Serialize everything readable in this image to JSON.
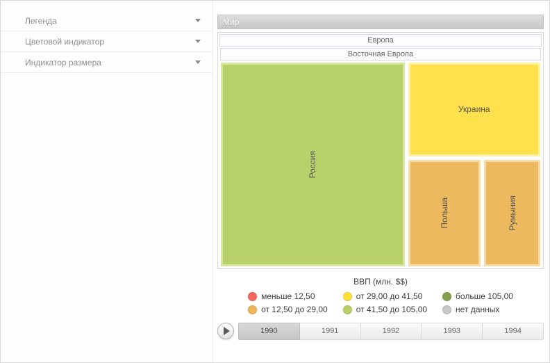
{
  "sidebar": {
    "items": [
      {
        "label": "Легенда",
        "icon": "chevron-down-icon"
      },
      {
        "label": "Цветовой индикатор",
        "icon": "chevron-down-icon"
      },
      {
        "label": "Индикатор размера",
        "icon": "chevron-down-icon"
      }
    ]
  },
  "breadcrumb": {
    "title": "Мир"
  },
  "treemap": {
    "group_label": "Европа",
    "subgroup_label": "Восточная Европа",
    "tiles": {
      "russia": {
        "label": "Россия",
        "fill": "#b8d069",
        "border": "#d8e59f"
      },
      "ukraine": {
        "label": "Украина",
        "fill": "#ffe04d",
        "border": "#fff3a3"
      },
      "poland": {
        "label": "Польша",
        "fill": "#edb95f",
        "border": "#f6dba4"
      },
      "romania": {
        "label": "Румыния",
        "fill": "#edb95f",
        "border": "#f6dba4"
      }
    }
  },
  "legend": {
    "title": "ВВП (млн. $$)",
    "items": [
      {
        "label": "меньше 12,50",
        "color": "#f3685c"
      },
      {
        "label": "от 12,50 до 29,00",
        "color": "#efb459"
      },
      {
        "label": "от 29,00 до 41,50",
        "color": "#ffdf37"
      },
      {
        "label": "от 41,50 до 105,00",
        "color": "#b8d069"
      },
      {
        "label": "больше 105,00",
        "color": "#84a24d"
      },
      {
        "label": "нет данных",
        "color": "#c9c9c9"
      }
    ]
  },
  "timeline": {
    "play_icon": "play-icon",
    "years": [
      {
        "label": "1990",
        "selected": true
      },
      {
        "label": "1991",
        "selected": false
      },
      {
        "label": "1992",
        "selected": false
      },
      {
        "label": "1993",
        "selected": false
      },
      {
        "label": "1994",
        "selected": false
      }
    ]
  },
  "chart_data": {
    "type": "treemap",
    "root": "Мир",
    "hierarchy": [
      "Мир",
      "Европа",
      "Восточная Европа"
    ],
    "leaves": [
      "Россия",
      "Украина",
      "Польша",
      "Румыния"
    ],
    "legend_title": "ВВП (млн. $$)",
    "legend_bins": [
      "меньше 12,50",
      "от 12,50 до 29,00",
      "от 29,00 до 41,50",
      "от 41,50 до 105,00",
      "больше 105,00",
      "нет данных"
    ]
  }
}
